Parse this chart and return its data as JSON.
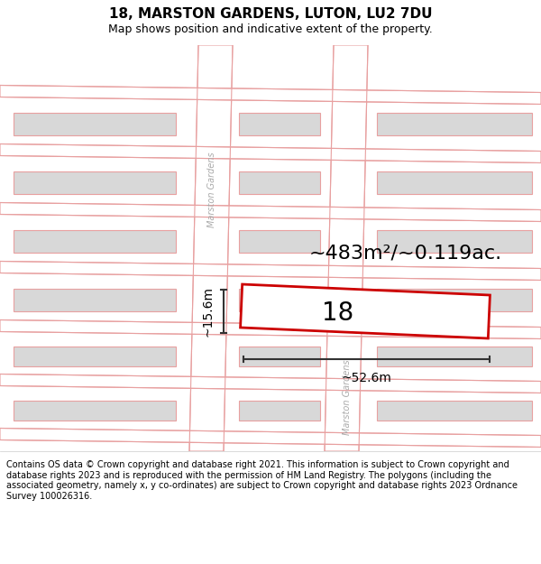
{
  "title": "18, MARSTON GARDENS, LUTON, LU2 7DU",
  "subtitle": "Map shows position and indicative extent of the property.",
  "footer": "Contains OS data © Crown copyright and database right 2021. This information is subject to Crown copyright and database rights 2023 and is reproduced with the permission of HM Land Registry. The polygons (including the associated geometry, namely x, y co-ordinates) are subject to Crown copyright and database rights 2023 Ordnance Survey 100026316.",
  "area_label": "~483m²/~0.119ac.",
  "number_label": "18",
  "width_label": "~52.6m",
  "height_label": "~15.6m",
  "street_label": "Marston Gardens",
  "map_bg": "#ffffff",
  "road_edge_color": "#e8a0a0",
  "building_fill": "#d8d8d8",
  "building_edge": "#e8a0a0",
  "plot_color": "#cc0000",
  "dim_color": "#333333",
  "title_fontsize": 11,
  "subtitle_fontsize": 9,
  "footer_fontsize": 7,
  "area_fontsize": 16,
  "number_fontsize": 20
}
